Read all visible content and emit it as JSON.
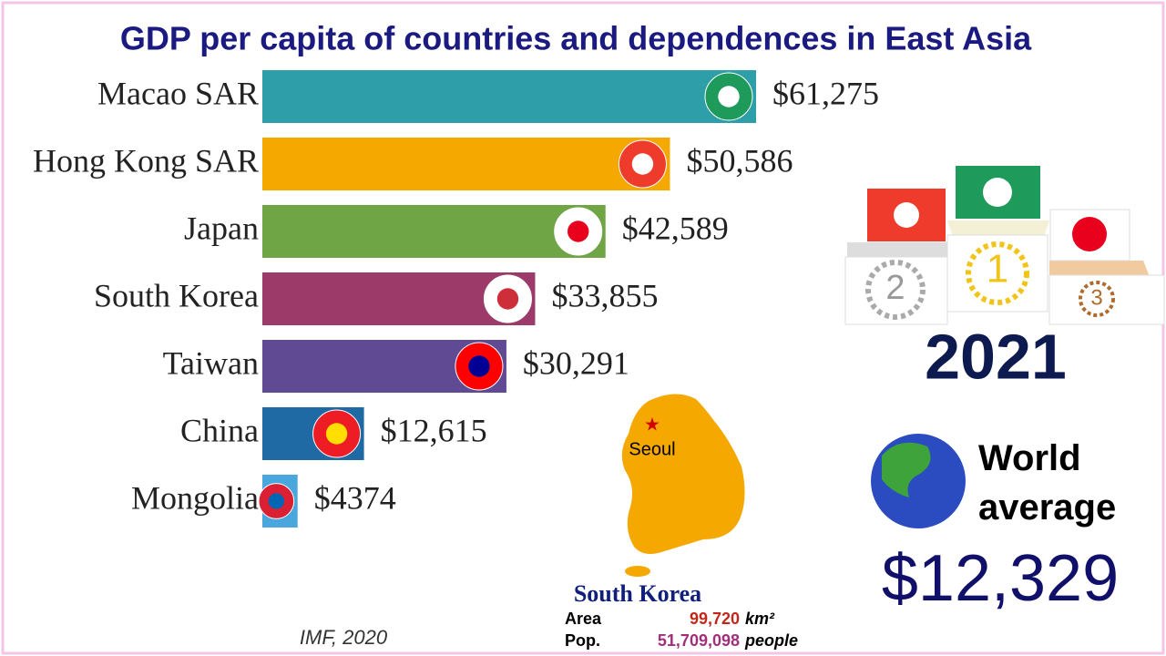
{
  "chart_data": {
    "type": "bar",
    "orientation": "horizontal",
    "title": "GDP per capita of countries and dependences in East Asia",
    "categories": [
      "Macao SAR",
      "Hong Kong SAR",
      "Japan",
      "South Korea",
      "Taiwan",
      "China",
      "Mongolia"
    ],
    "values": [
      61275,
      50586,
      42589,
      33855,
      30291,
      12615,
      4374
    ],
    "value_labels": [
      "$61,275",
      "$50,586",
      "$42,589",
      "$33,855",
      "$30,291",
      "$12,615",
      "$4374"
    ],
    "colors": [
      "#2e9ea8",
      "#f5a800",
      "#6fa544",
      "#9c3b6a",
      "#604a94",
      "#1f6aa5",
      "#4aa7dd"
    ],
    "year": "2021",
    "source": "IMF, 2020",
    "podium_ranks": [
      1,
      2,
      3
    ],
    "world_average": {
      "label": "World average",
      "value": 12329,
      "value_label": "$12,329"
    },
    "map_info": {
      "country": "South Korea",
      "capital": "Seoul",
      "area_label": "Area",
      "area": "99,720",
      "area_unit": "km²",
      "pop_label": "Pop.",
      "population": "51,709,098",
      "pop_unit": "people"
    }
  }
}
